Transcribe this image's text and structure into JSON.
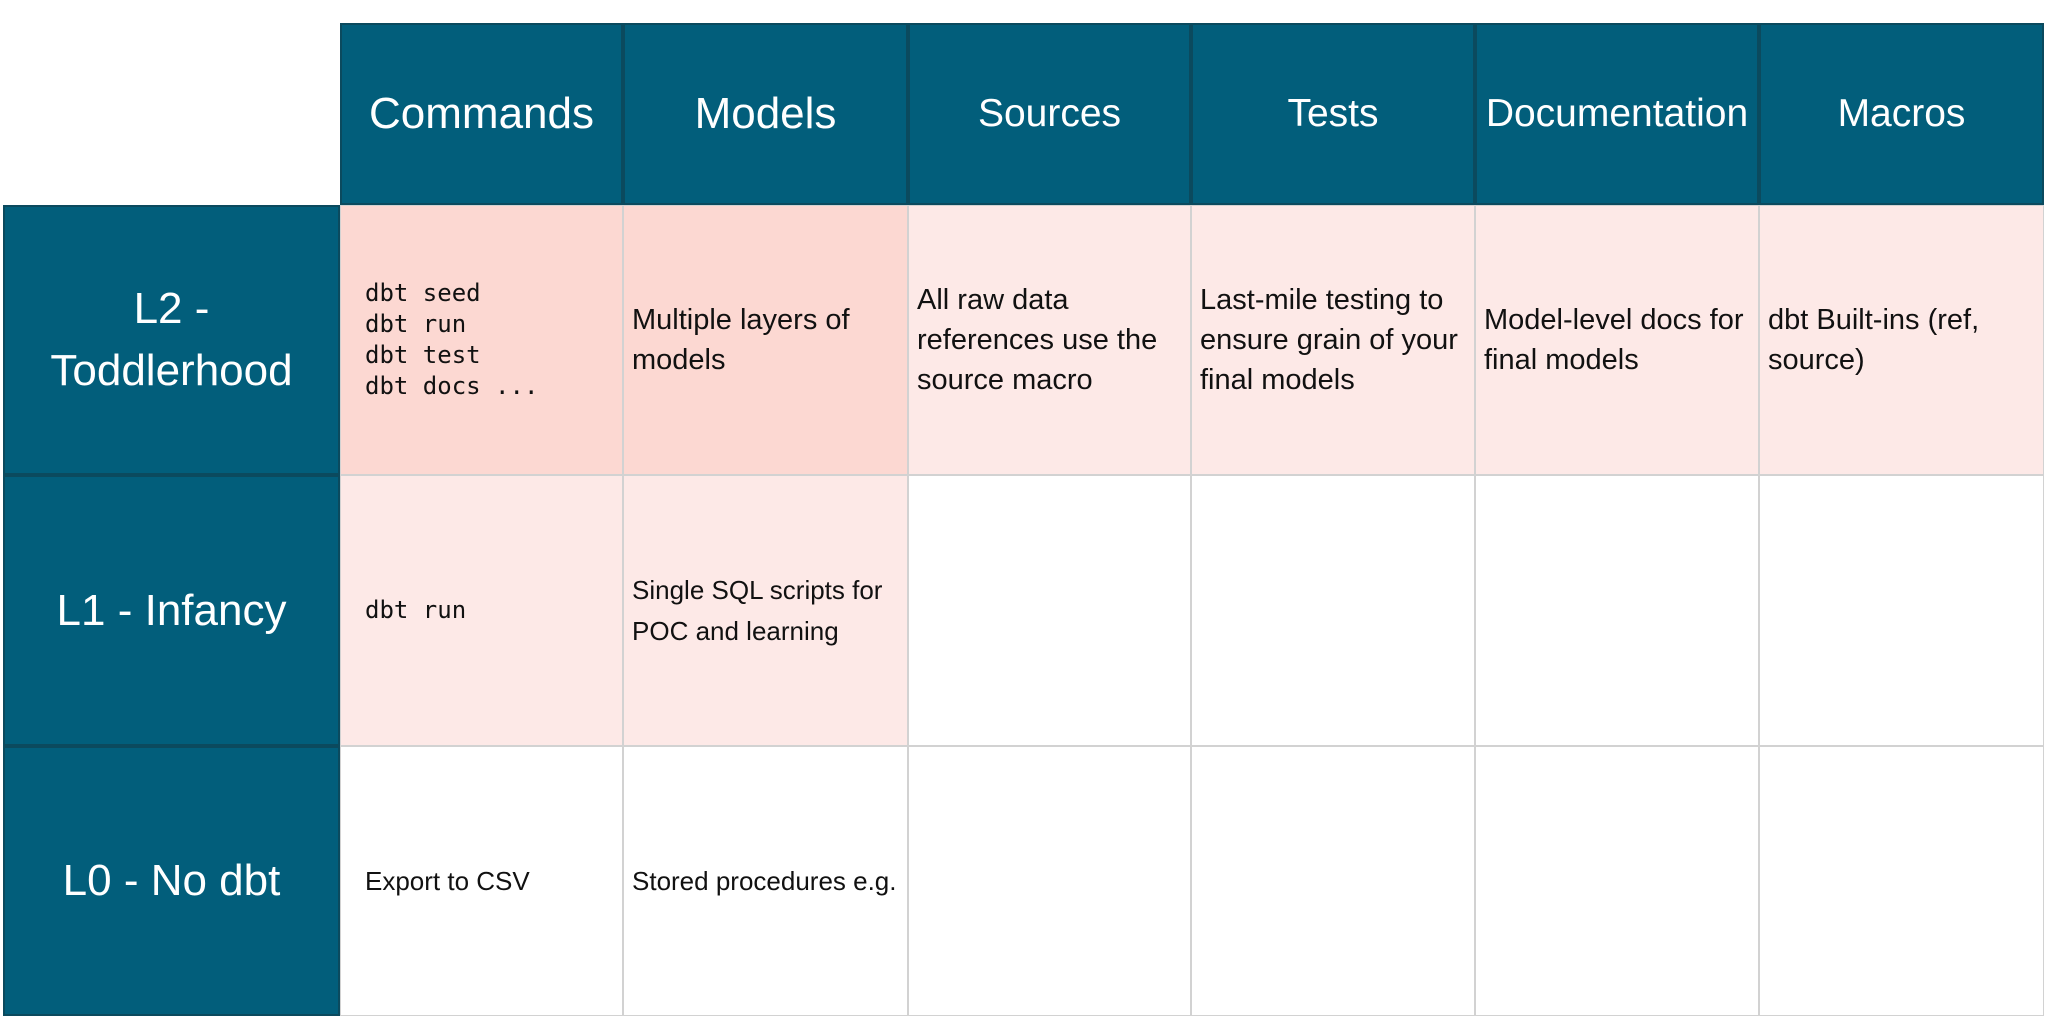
{
  "table": {
    "columns": [
      "Commands",
      "Models",
      "Sources",
      "Tests",
      "Documentation",
      "Macros"
    ],
    "rows": [
      {
        "label": "L2 - Toddlerhood",
        "cells": [
          "dbt seed\ndbt run\ndbt test\ndbt docs ...",
          "Multiple layers of models",
          "All raw data references use the source macro",
          "Last-mile testing to ensure grain of your final models",
          "Model-level docs for final models",
          "dbt Built-ins (ref, source)"
        ]
      },
      {
        "label": "L1 - Infancy",
        "cells": [
          "dbt run",
          "Single SQL scripts for POC and learning",
          null,
          null,
          null,
          null
        ]
      },
      {
        "label": "L0 - No dbt",
        "cells": [
          "Export to CSV",
          "Stored procedures e.g.",
          null,
          null,
          null,
          null
        ]
      }
    ]
  }
}
